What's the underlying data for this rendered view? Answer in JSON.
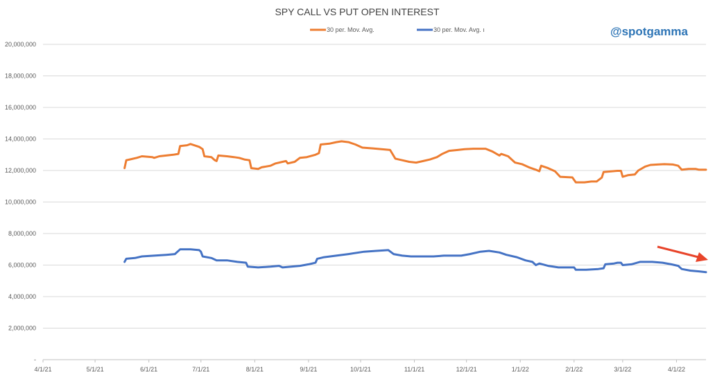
{
  "chart_data": {
    "type": "line",
    "title": "SPY CALL VS PUT OPEN INTEREST",
    "xlabel": "",
    "ylabel": "",
    "ylim": [
      0,
      20000000
    ],
    "grid": true,
    "legend_placement": "top",
    "watermark": "@spotgamma",
    "watermark_color": "#2e75b6",
    "annotation_color": "#e8442a",
    "y_ticks": [
      {
        "value": 0,
        "label": "-"
      },
      {
        "value": 2000000,
        "label": "2,000,000"
      },
      {
        "value": 4000000,
        "label": "4,000,000"
      },
      {
        "value": 6000000,
        "label": "6,000,000"
      },
      {
        "value": 8000000,
        "label": "8,000,000"
      },
      {
        "value": 10000000,
        "label": "10,000,000"
      },
      {
        "value": 12000000,
        "label": "12,000,000"
      },
      {
        "value": 14000000,
        "label": "14,000,000"
      },
      {
        "value": 16000000,
        "label": "16,000,000"
      },
      {
        "value": 18000000,
        "label": "18,000,000"
      },
      {
        "value": 20000000,
        "label": "20,000,000"
      }
    ],
    "x_ticks": [
      {
        "value": "2021-04-01",
        "label": "4/1/21"
      },
      {
        "value": "2021-05-01",
        "label": "5/1/21"
      },
      {
        "value": "2021-06-01",
        "label": "6/1/21"
      },
      {
        "value": "2021-07-01",
        "label": "7/1/21"
      },
      {
        "value": "2021-08-01",
        "label": "8/1/21"
      },
      {
        "value": "2021-09-01",
        "label": "9/1/21"
      },
      {
        "value": "2021-10-01",
        "label": "10/1/21"
      },
      {
        "value": "2021-11-01",
        "label": "11/1/21"
      },
      {
        "value": "2021-12-01",
        "label": "12/1/21"
      },
      {
        "value": "2022-01-01",
        "label": "1/1/22"
      },
      {
        "value": "2022-02-01",
        "label": "2/1/22"
      },
      {
        "value": "2022-03-01",
        "label": "3/1/22"
      },
      {
        "value": "2022-04-01",
        "label": "4/1/22"
      }
    ],
    "x_range": [
      "2021-04-01",
      "2022-04-18"
    ],
    "series": [
      {
        "name": "30 per. Mov. Avg.",
        "color": "#ed7d31",
        "points": [
          [
            "2021-05-18",
            12150000
          ],
          [
            "2021-05-19",
            12650000
          ],
          [
            "2021-05-21",
            12700000
          ],
          [
            "2021-05-25",
            12800000
          ],
          [
            "2021-05-28",
            12900000
          ],
          [
            "2021-06-03",
            12850000
          ],
          [
            "2021-06-04",
            12800000
          ],
          [
            "2021-06-07",
            12900000
          ],
          [
            "2021-06-11",
            12950000
          ],
          [
            "2021-06-15",
            13000000
          ],
          [
            "2021-06-18",
            13050000
          ],
          [
            "2021-06-19",
            13550000
          ],
          [
            "2021-06-23",
            13600000
          ],
          [
            "2021-06-25",
            13680000
          ],
          [
            "2021-06-30",
            13500000
          ],
          [
            "2021-07-02",
            13350000
          ],
          [
            "2021-07-03",
            12900000
          ],
          [
            "2021-07-07",
            12850000
          ],
          [
            "2021-07-09",
            12650000
          ],
          [
            "2021-07-10",
            12600000
          ],
          [
            "2021-07-11",
            12950000
          ],
          [
            "2021-07-16",
            12900000
          ],
          [
            "2021-07-20",
            12850000
          ],
          [
            "2021-07-23",
            12800000
          ],
          [
            "2021-07-26",
            12700000
          ],
          [
            "2021-07-29",
            12650000
          ],
          [
            "2021-07-30",
            12150000
          ],
          [
            "2021-08-03",
            12100000
          ],
          [
            "2021-08-05",
            12200000
          ],
          [
            "2021-08-10",
            12300000
          ],
          [
            "2021-08-13",
            12450000
          ],
          [
            "2021-08-17",
            12550000
          ],
          [
            "2021-08-19",
            12600000
          ],
          [
            "2021-08-20",
            12450000
          ],
          [
            "2021-08-24",
            12550000
          ],
          [
            "2021-08-27",
            12800000
          ],
          [
            "2021-08-31",
            12850000
          ],
          [
            "2021-09-05",
            13000000
          ],
          [
            "2021-09-07",
            13100000
          ],
          [
            "2021-09-08",
            13650000
          ],
          [
            "2021-09-13",
            13700000
          ],
          [
            "2021-09-17",
            13800000
          ],
          [
            "2021-09-20",
            13850000
          ],
          [
            "2021-09-24",
            13800000
          ],
          [
            "2021-09-28",
            13650000
          ],
          [
            "2021-10-02",
            13450000
          ],
          [
            "2021-10-08",
            13400000
          ],
          [
            "2021-10-13",
            13350000
          ],
          [
            "2021-10-18",
            13300000
          ],
          [
            "2021-10-21",
            12750000
          ],
          [
            "2021-10-25",
            12650000
          ],
          [
            "2021-10-29",
            12550000
          ],
          [
            "2021-11-02",
            12500000
          ],
          [
            "2021-11-06",
            12600000
          ],
          [
            "2021-11-10",
            12700000
          ],
          [
            "2021-11-14",
            12850000
          ],
          [
            "2021-11-17",
            13050000
          ],
          [
            "2021-11-21",
            13250000
          ],
          [
            "2021-11-26",
            13300000
          ],
          [
            "2021-11-30",
            13350000
          ],
          [
            "2021-12-05",
            13380000
          ],
          [
            "2021-12-12",
            13380000
          ],
          [
            "2021-12-16",
            13200000
          ],
          [
            "2021-12-20",
            12950000
          ],
          [
            "2021-12-21",
            13050000
          ],
          [
            "2021-12-25",
            12900000
          ],
          [
            "2021-12-29",
            12500000
          ],
          [
            "2022-01-02",
            12400000
          ],
          [
            "2022-01-06",
            12200000
          ],
          [
            "2022-01-10",
            12050000
          ],
          [
            "2022-01-12",
            11950000
          ],
          [
            "2022-01-13",
            12300000
          ],
          [
            "2022-01-17",
            12150000
          ],
          [
            "2022-01-21",
            11950000
          ],
          [
            "2022-01-24",
            11600000
          ],
          [
            "2022-01-28",
            11580000
          ],
          [
            "2022-01-31",
            11560000
          ],
          [
            "2022-02-02",
            11250000
          ],
          [
            "2022-02-07",
            11250000
          ],
          [
            "2022-02-11",
            11300000
          ],
          [
            "2022-02-14",
            11300000
          ],
          [
            "2022-02-17",
            11550000
          ],
          [
            "2022-02-18",
            11900000
          ],
          [
            "2022-02-23",
            11950000
          ],
          [
            "2022-02-26",
            11980000
          ],
          [
            "2022-02-28",
            11980000
          ],
          [
            "2022-03-01",
            11600000
          ],
          [
            "2022-03-04",
            11700000
          ],
          [
            "2022-03-08",
            11750000
          ],
          [
            "2022-03-10",
            12000000
          ],
          [
            "2022-03-14",
            12250000
          ],
          [
            "2022-03-17",
            12350000
          ],
          [
            "2022-03-21",
            12380000
          ],
          [
            "2022-03-25",
            12400000
          ],
          [
            "2022-03-30",
            12380000
          ],
          [
            "2022-04-02",
            12300000
          ],
          [
            "2022-04-04",
            12050000
          ],
          [
            "2022-04-08",
            12100000
          ],
          [
            "2022-04-12",
            12100000
          ],
          [
            "2022-04-14",
            12050000
          ],
          [
            "2022-04-18",
            12050000
          ]
        ]
      },
      {
        "name": "30 per. Mov. Avg. ı",
        "color": "#4472c4",
        "points": [
          [
            "2021-05-18",
            6200000
          ],
          [
            "2021-05-19",
            6400000
          ],
          [
            "2021-05-24",
            6450000
          ],
          [
            "2021-05-28",
            6550000
          ],
          [
            "2021-06-04",
            6600000
          ],
          [
            "2021-06-11",
            6650000
          ],
          [
            "2021-06-16",
            6700000
          ],
          [
            "2021-06-19",
            7000000
          ],
          [
            "2021-06-25",
            7000000
          ],
          [
            "2021-06-30",
            6950000
          ],
          [
            "2021-07-01",
            6850000
          ],
          [
            "2021-07-02",
            6550000
          ],
          [
            "2021-07-07",
            6450000
          ],
          [
            "2021-07-10",
            6300000
          ],
          [
            "2021-07-16",
            6300000
          ],
          [
            "2021-07-22",
            6200000
          ],
          [
            "2021-07-27",
            6150000
          ],
          [
            "2021-07-28",
            5900000
          ],
          [
            "2021-08-03",
            5850000
          ],
          [
            "2021-08-10",
            5900000
          ],
          [
            "2021-08-15",
            5950000
          ],
          [
            "2021-08-17",
            5850000
          ],
          [
            "2021-08-22",
            5900000
          ],
          [
            "2021-08-27",
            5950000
          ],
          [
            "2021-09-01",
            6050000
          ],
          [
            "2021-09-05",
            6150000
          ],
          [
            "2021-09-06",
            6400000
          ],
          [
            "2021-09-10",
            6500000
          ],
          [
            "2021-09-17",
            6600000
          ],
          [
            "2021-09-24",
            6700000
          ],
          [
            "2021-10-03",
            6850000
          ],
          [
            "2021-10-10",
            6900000
          ],
          [
            "2021-10-17",
            6950000
          ],
          [
            "2021-10-20",
            6700000
          ],
          [
            "2021-10-25",
            6600000
          ],
          [
            "2021-10-30",
            6550000
          ],
          [
            "2021-11-06",
            6550000
          ],
          [
            "2021-11-12",
            6550000
          ],
          [
            "2021-11-18",
            6600000
          ],
          [
            "2021-11-24",
            6600000
          ],
          [
            "2021-11-28",
            6600000
          ],
          [
            "2021-12-03",
            6700000
          ],
          [
            "2021-12-09",
            6850000
          ],
          [
            "2021-12-14",
            6900000
          ],
          [
            "2021-12-20",
            6800000
          ],
          [
            "2021-12-24",
            6650000
          ],
          [
            "2021-12-30",
            6500000
          ],
          [
            "2022-01-04",
            6300000
          ],
          [
            "2022-01-08",
            6200000
          ],
          [
            "2022-01-10",
            6000000
          ],
          [
            "2022-01-12",
            6100000
          ],
          [
            "2022-01-17",
            5950000
          ],
          [
            "2022-01-23",
            5850000
          ],
          [
            "2022-01-28",
            5850000
          ],
          [
            "2022-02-01",
            5850000
          ],
          [
            "2022-02-02",
            5700000
          ],
          [
            "2022-02-08",
            5700000
          ],
          [
            "2022-02-15",
            5750000
          ],
          [
            "2022-02-18",
            5800000
          ],
          [
            "2022-02-19",
            6050000
          ],
          [
            "2022-02-24",
            6100000
          ],
          [
            "2022-02-26",
            6150000
          ],
          [
            "2022-02-28",
            6150000
          ],
          [
            "2022-03-01",
            6000000
          ],
          [
            "2022-03-06",
            6050000
          ],
          [
            "2022-03-11",
            6200000
          ],
          [
            "2022-03-18",
            6200000
          ],
          [
            "2022-03-24",
            6150000
          ],
          [
            "2022-03-29",
            6050000
          ],
          [
            "2022-04-02",
            5950000
          ],
          [
            "2022-04-04",
            5750000
          ],
          [
            "2022-04-09",
            5650000
          ],
          [
            "2022-04-14",
            5600000
          ],
          [
            "2022-04-18",
            5550000
          ]
        ]
      }
    ]
  }
}
